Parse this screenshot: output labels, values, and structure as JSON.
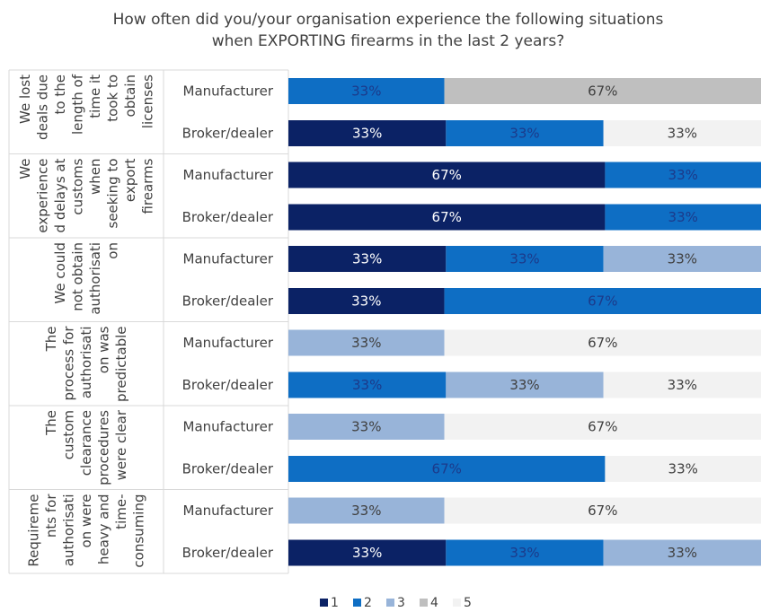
{
  "chart_data": {
    "type": "bar",
    "orientation": "horizontal",
    "stacked": "100%",
    "title": "How often did you/your organisation experience the following situations when EXPORTING firearms in the last 2 years?",
    "title_lines": [
      "How often did you/your organisation experience the following situations",
      "when EXPORTING firearms in the last 2 years?"
    ],
    "legend_position": "bottom",
    "grid": false,
    "xlim": [
      0,
      100
    ],
    "series": [
      {
        "name": "1",
        "color": "#0b2265",
        "label_color": "#ffffff"
      },
      {
        "name": "2",
        "color": "#0e6ec4",
        "label_color": "#1c3a8a"
      },
      {
        "name": "3",
        "color": "#98b4d9",
        "label_color": "#404040"
      },
      {
        "name": "4",
        "color": "#bfbfbf",
        "label_color": "#404040"
      },
      {
        "name": "5",
        "color": "#f2f2f2",
        "label_color": "#404040"
      }
    ],
    "groups": [
      {
        "label": "We lost deals due to the length of time it took to obtain licenses",
        "label_lines": [
          "We lost",
          "deals due",
          "to the",
          "length of",
          "time it",
          "took to",
          "obtain",
          "licenses"
        ],
        "rows": [
          {
            "category": "Manufacturer",
            "values": [
              0,
              33,
              0,
              67,
              0
            ]
          },
          {
            "category": "Broker/dealer",
            "values": [
              33,
              33,
              0,
              0,
              33
            ]
          }
        ]
      },
      {
        "label": "We experienced delays at customs when seeking to export firearms",
        "label_lines": [
          "We",
          "experience",
          "d delays at",
          "customs",
          "when",
          "seeking to",
          "export",
          "firearms"
        ],
        "rows": [
          {
            "category": "Manufacturer",
            "values": [
              67,
              33,
              0,
              0,
              0
            ]
          },
          {
            "category": "Broker/dealer",
            "values": [
              67,
              33,
              0,
              0,
              0
            ]
          }
        ]
      },
      {
        "label": "We could not obtain authorisation",
        "label_lines": [
          "We could",
          "not obtain",
          "authorisati",
          "on"
        ],
        "rows": [
          {
            "category": "Manufacturer",
            "values": [
              33,
              33,
              33,
              0,
              0
            ]
          },
          {
            "category": "Broker/dealer",
            "values": [
              33,
              67,
              0,
              0,
              0
            ]
          }
        ]
      },
      {
        "label": "The process for authorisation was predictable",
        "label_lines": [
          "The",
          "process for",
          "authorisati",
          "on was",
          "predictable"
        ],
        "rows": [
          {
            "category": "Manufacturer",
            "values": [
              0,
              0,
              33,
              0,
              67
            ]
          },
          {
            "category": "Broker/dealer",
            "values": [
              0,
              33,
              33,
              0,
              33
            ]
          }
        ]
      },
      {
        "label": "The custom clearance procedures were clear",
        "label_lines": [
          "The",
          "custom",
          "clearance",
          "procedures",
          "were clear"
        ],
        "rows": [
          {
            "category": "Manufacturer",
            "values": [
              0,
              0,
              33,
              0,
              67
            ]
          },
          {
            "category": "Broker/dealer",
            "values": [
              0,
              67,
              0,
              0,
              33
            ]
          }
        ]
      },
      {
        "label": "Requirements for authorisation were heavy and time-consuming",
        "label_lines": [
          "Requireme",
          "nts for",
          "authorisati",
          "on were",
          "heavy and",
          "time-",
          "consuming"
        ],
        "rows": [
          {
            "category": "Manufacturer",
            "values": [
              0,
              0,
              33,
              0,
              67
            ]
          },
          {
            "category": "Broker/dealer",
            "values": [
              33,
              33,
              33,
              0,
              0
            ]
          }
        ]
      }
    ]
  }
}
